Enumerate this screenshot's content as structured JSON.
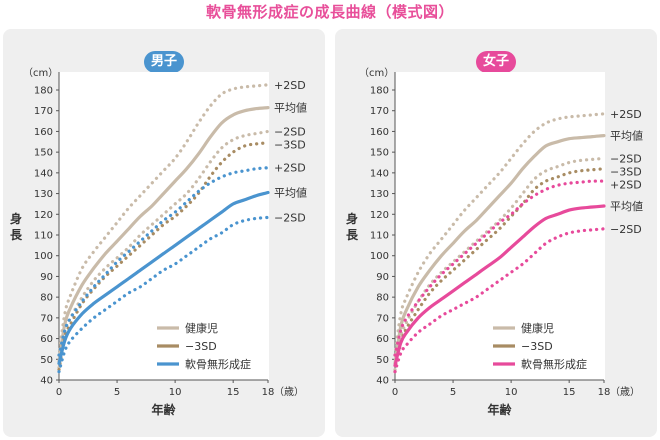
{
  "title": "軟骨無形成症の成長曲線（模式図）",
  "colors": {
    "normal": "#c9bba9",
    "minus3sd": "#a88c63",
    "boys": "#4a94cf",
    "girls": "#e74a9b"
  },
  "chart_data": [
    {
      "type": "line",
      "panel": "boys",
      "title": "男子",
      "xlabel": "年齢",
      "ylabel": "身長",
      "x_unit": "（歳）",
      "y_unit": "（cm）",
      "xlim": [
        0,
        18
      ],
      "ylim": [
        40,
        185
      ],
      "x_ticks": [
        0,
        5,
        10,
        15,
        18
      ],
      "y_ticks": [
        40,
        50,
        60,
        70,
        80,
        90,
        100,
        110,
        120,
        130,
        140,
        150,
        160,
        170,
        180
      ],
      "series": [
        {
          "name": "+2SD",
          "group": "normal",
          "dash": true,
          "x": [
            0,
            0.5,
            1,
            2,
            3,
            4,
            5,
            6,
            7,
            8,
            9,
            10,
            11,
            12,
            13,
            14,
            15,
            16,
            17,
            18
          ],
          "values": [
            52,
            72,
            81,
            94,
            102,
            109,
            116,
            123,
            129,
            135,
            141,
            147,
            155,
            164,
            172,
            178,
            180.5,
            181.5,
            182,
            182.5
          ]
        },
        {
          "name": "平均値",
          "group": "normal",
          "dash": false,
          "x": [
            0,
            0.5,
            1,
            2,
            3,
            4,
            5,
            6,
            7,
            8,
            9,
            10,
            11,
            12,
            13,
            14,
            15,
            16,
            17,
            18
          ],
          "values": [
            49,
            67,
            75,
            86,
            94,
            101,
            107,
            113,
            119,
            124,
            130,
            136,
            142,
            149,
            157,
            164,
            168,
            170,
            171,
            171.5
          ]
        },
        {
          "name": "−2SD",
          "group": "normal",
          "dash": true,
          "x": [
            0,
            0.5,
            1,
            2,
            3,
            4,
            5,
            6,
            7,
            8,
            9,
            10,
            11,
            12,
            13,
            14,
            15,
            16,
            17,
            18
          ],
          "values": [
            46,
            63,
            70,
            80,
            88,
            94,
            99,
            104,
            110,
            115,
            120,
            125,
            130,
            137,
            145,
            152,
            156,
            158,
            159,
            160
          ]
        },
        {
          "name": "−3SD",
          "group": "minus3sd",
          "dash": true,
          "x": [
            0,
            0.5,
            1,
            2,
            3,
            4,
            5,
            6,
            7,
            8,
            9,
            10,
            11,
            12,
            13,
            14,
            15,
            16,
            17,
            18
          ],
          "values": [
            45,
            61,
            67,
            77,
            84,
            90,
            95,
            100,
            105,
            110,
            115,
            119,
            124,
            130,
            138,
            145,
            150,
            153,
            154,
            154.5
          ]
        },
        {
          "name": "+2SD",
          "group": "achondroplasia",
          "dash": true,
          "x": [
            0,
            0.5,
            1,
            2,
            3,
            4,
            5,
            6,
            7,
            8,
            9,
            10,
            11,
            12,
            13,
            14,
            15,
            16,
            17,
            18
          ],
          "values": [
            52,
            64,
            70,
            78,
            85,
            91,
            97,
            102,
            107,
            112,
            117,
            121,
            126,
            131,
            135,
            138,
            140,
            141,
            142,
            142.5
          ]
        },
        {
          "name": "平均値",
          "group": "achondroplasia",
          "dash": false,
          "x": [
            0,
            0.5,
            1,
            2,
            3,
            4,
            5,
            6,
            7,
            8,
            9,
            10,
            11,
            12,
            13,
            14,
            15,
            16,
            17,
            18
          ],
          "values": [
            48,
            59,
            65,
            72,
            77,
            81,
            85,
            89,
            93,
            97,
            101,
            105,
            109,
            113,
            117,
            121,
            125,
            127,
            129,
            130.5
          ]
        },
        {
          "name": "−2SD",
          "group": "achondroplasia",
          "dash": true,
          "x": [
            0,
            0.5,
            1,
            2,
            3,
            4,
            5,
            6,
            7,
            8,
            9,
            10,
            11,
            12,
            13,
            14,
            15,
            16,
            17,
            18
          ],
          "values": [
            44,
            54,
            59,
            65,
            70,
            74,
            78,
            82,
            85,
            89,
            93,
            96,
            100,
            104,
            108,
            111,
            115,
            117,
            118,
            118.5
          ]
        }
      ],
      "legend": [
        {
          "label": "健康児",
          "group": "normal"
        },
        {
          "label": "−3SD",
          "group": "minus3sd"
        },
        {
          "label": "軟骨無形成症",
          "group": "achondroplasia"
        }
      ]
    },
    {
      "type": "line",
      "panel": "girls",
      "title": "女子",
      "xlabel": "年齢",
      "ylabel": "身長",
      "x_unit": "（歳）",
      "y_unit": "（cm）",
      "xlim": [
        0,
        18
      ],
      "ylim": [
        40,
        185
      ],
      "x_ticks": [
        0,
        5,
        10,
        15,
        18
      ],
      "y_ticks": [
        40,
        50,
        60,
        70,
        80,
        90,
        100,
        110,
        120,
        130,
        140,
        150,
        160,
        170,
        180
      ],
      "series": [
        {
          "name": "+2SD",
          "group": "normal",
          "dash": true,
          "x": [
            0,
            0.5,
            1,
            2,
            3,
            4,
            5,
            6,
            7,
            8,
            9,
            10,
            11,
            12,
            13,
            14,
            15,
            16,
            17,
            18
          ],
          "values": [
            52,
            72,
            80,
            92,
            101,
            108,
            115,
            122,
            128,
            134,
            140,
            147,
            154,
            160,
            164,
            166,
            167,
            167.5,
            168,
            168.5
          ]
        },
        {
          "name": "平均値",
          "group": "normal",
          "dash": false,
          "x": [
            0,
            0.5,
            1,
            2,
            3,
            4,
            5,
            6,
            7,
            8,
            9,
            10,
            11,
            12,
            13,
            14,
            15,
            16,
            17,
            18
          ],
          "values": [
            48,
            66,
            74,
            85,
            93,
            100,
            106,
            112,
            117,
            123,
            129,
            135,
            142,
            148,
            153,
            155,
            156.5,
            157,
            157.5,
            158
          ]
        },
        {
          "name": "−2SD",
          "group": "normal",
          "dash": true,
          "x": [
            0,
            0.5,
            1,
            2,
            3,
            4,
            5,
            6,
            7,
            8,
            9,
            10,
            11,
            12,
            13,
            14,
            15,
            16,
            17,
            18
          ],
          "values": [
            45,
            61,
            68,
            78,
            86,
            92,
            97,
            102,
            107,
            112,
            117,
            123,
            130,
            137,
            141,
            143,
            145,
            146,
            146.5,
            147
          ]
        },
        {
          "name": "−3SD",
          "group": "minus3sd",
          "dash": true,
          "x": [
            0,
            0.5,
            1,
            2,
            3,
            4,
            5,
            6,
            7,
            8,
            9,
            10,
            11,
            12,
            13,
            14,
            15,
            16,
            17,
            18
          ],
          "values": [
            44,
            58,
            65,
            74,
            82,
            88,
            93,
            98,
            103,
            108,
            113,
            119,
            125,
            132,
            136,
            138,
            140,
            141,
            141.5,
            142
          ]
        },
        {
          "name": "+2SD",
          "group": "achondroplasia",
          "dash": true,
          "x": [
            0,
            0.5,
            1,
            2,
            3,
            4,
            5,
            6,
            7,
            8,
            9,
            10,
            11,
            12,
            13,
            14,
            15,
            16,
            17,
            18
          ],
          "values": [
            52,
            64,
            70,
            78,
            85,
            91,
            96,
            101,
            106,
            111,
            116,
            120,
            125,
            129,
            132,
            134,
            135,
            135.5,
            136,
            136
          ]
        },
        {
          "name": "平均値",
          "group": "achondroplasia",
          "dash": false,
          "x": [
            0,
            0.5,
            1,
            2,
            3,
            4,
            5,
            6,
            7,
            8,
            9,
            10,
            11,
            12,
            13,
            14,
            15,
            16,
            17,
            18
          ],
          "values": [
            47,
            58,
            63,
            70,
            75,
            79,
            83,
            87,
            91,
            95,
            99,
            104,
            109,
            114,
            118,
            120,
            122,
            123,
            123.5,
            124
          ]
        },
        {
          "name": "−2SD",
          "group": "achondroplasia",
          "dash": true,
          "x": [
            0,
            0.5,
            1,
            2,
            3,
            4,
            5,
            6,
            7,
            8,
            9,
            10,
            11,
            12,
            13,
            14,
            15,
            16,
            17,
            18
          ],
          "values": [
            44,
            53,
            57,
            63,
            67,
            71,
            74,
            77,
            80,
            84,
            88,
            92,
            96,
            101,
            106,
            109,
            111,
            112,
            112.5,
            113
          ]
        }
      ],
      "legend": [
        {
          "label": "健康児",
          "group": "normal"
        },
        {
          "label": "−3SD",
          "group": "minus3sd"
        },
        {
          "label": "軟骨無形成症",
          "group": "achondroplasia"
        }
      ]
    }
  ]
}
